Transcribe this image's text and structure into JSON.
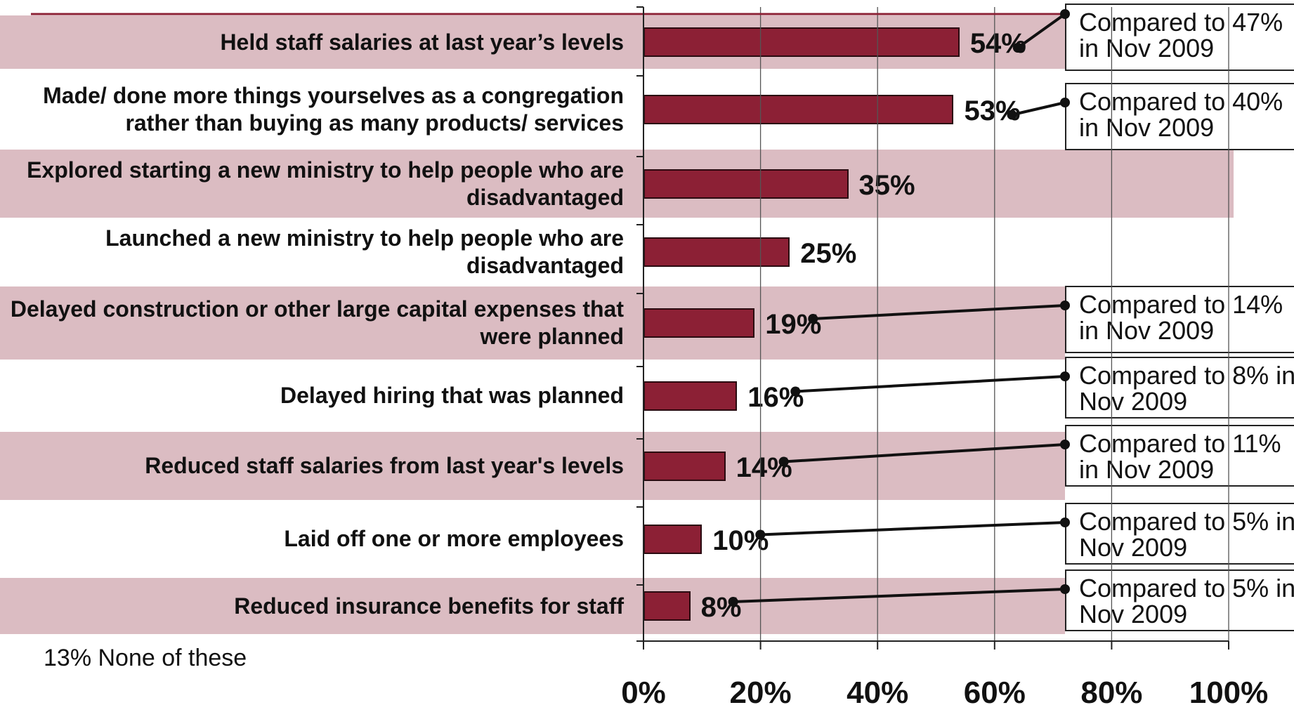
{
  "chart_data": {
    "type": "bar",
    "orientation": "horizontal",
    "categories": [
      "Held staff salaries at last year’s levels",
      "Made/ done more things yourselves as a congregation rather than buying as many products/ services",
      "Explored starting a new ministry to help people who are disadvantaged",
      "Launched a new ministry to help people who are disadvantaged",
      "Delayed construction or other large capital expenses that were planned",
      "Delayed hiring that was planned",
      "Reduced staff salaries from last year's levels",
      "Laid off one or more employees",
      "Reduced insurance benefits for staff"
    ],
    "values": [
      54,
      53,
      35,
      25,
      19,
      16,
      14,
      10,
      8
    ],
    "value_labels": [
      "54%",
      "53%",
      "35%",
      "25%",
      "19%",
      "16%",
      "14%",
      "10%",
      "8%"
    ],
    "callouts": [
      "Compared to 47% in Nov 2009",
      "Compared to 40% in Nov 2009",
      "",
      "",
      "Compared to 14% in Nov 2009",
      "Compared to 8% in Nov 2009",
      "Compared to 11% in Nov 2009",
      "Compared to 5% in Nov 2009",
      "Compared to 5% in Nov 2009"
    ],
    "xlim": [
      0,
      100
    ],
    "x_ticks": [
      "0%",
      "20%",
      "40%",
      "60%",
      "80%",
      "100%"
    ],
    "grid": true,
    "footnote": "13% None of these",
    "colors": {
      "bar": "#8c2035",
      "band": "#dbbcc2",
      "rule": "#8c2035"
    }
  }
}
